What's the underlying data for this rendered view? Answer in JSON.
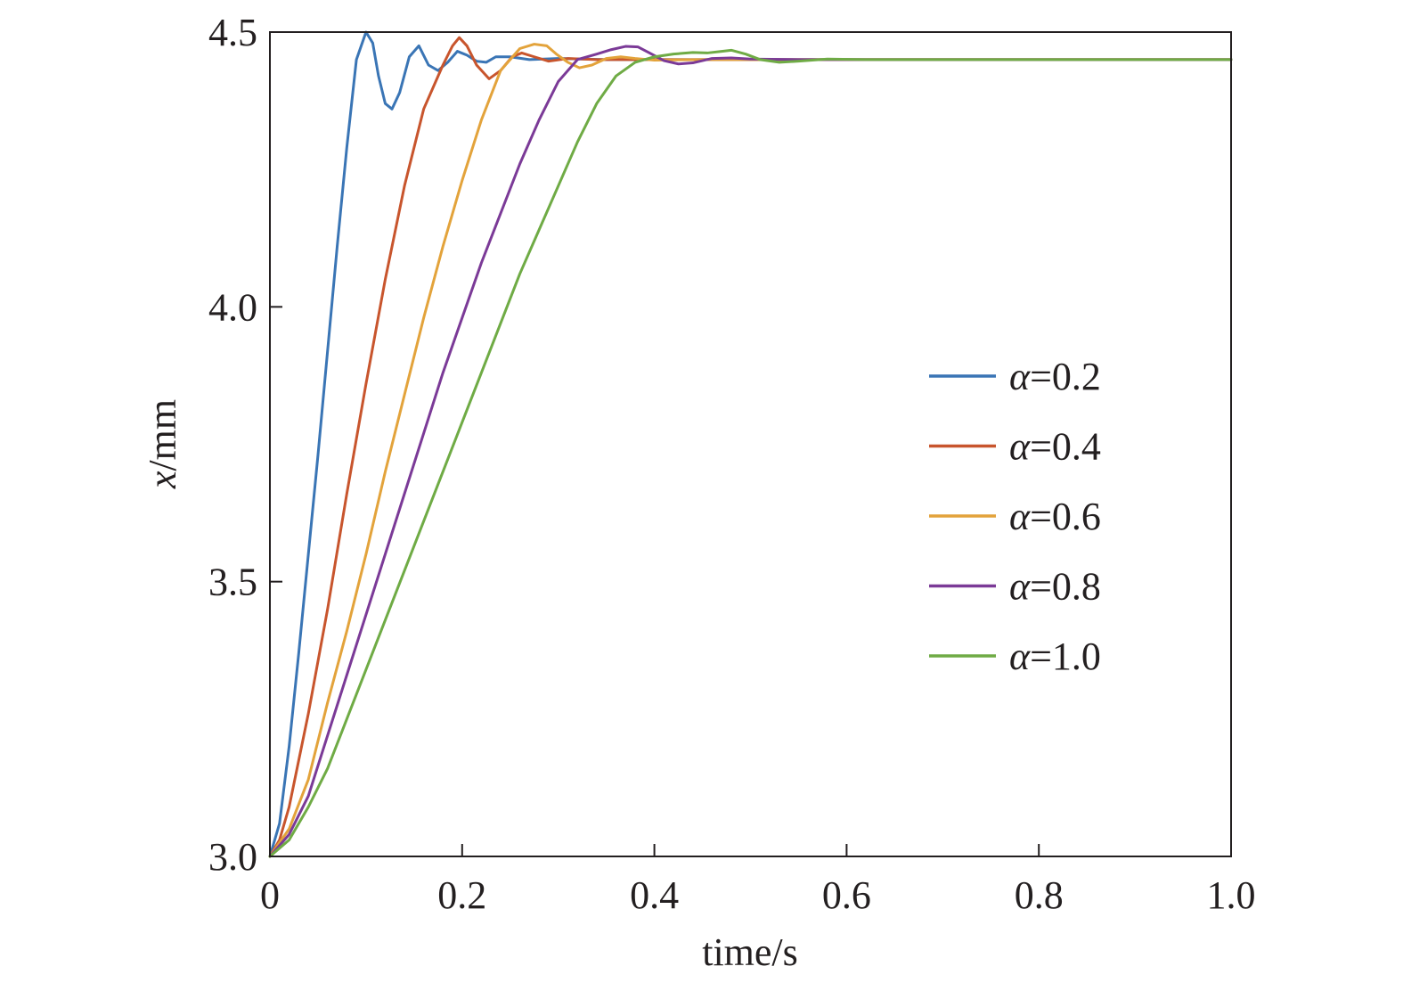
{
  "chart_data": {
    "type": "line",
    "title": "",
    "xlabel": "time/s",
    "ylabel": {
      "var": "x",
      "unit": "/mm"
    },
    "xlim": [
      0,
      1.0
    ],
    "ylim": [
      3.0,
      4.5
    ],
    "xticks": [
      0,
      0.2,
      0.4,
      0.6,
      0.8,
      1.0
    ],
    "xtick_labels": [
      "0",
      "0.2",
      "0.4",
      "0.6",
      "0.8",
      "1.0"
    ],
    "yticks": [
      3.0,
      3.5,
      4.0,
      4.5
    ],
    "ytick_labels": [
      "3.0",
      "3.5",
      "4.0",
      "4.5"
    ],
    "grid": false,
    "legend_position": "right",
    "series": [
      {
        "name": {
          "symbol": "α",
          "text": "=0.2"
        },
        "color": "#3a75b5",
        "x": [
          0.0,
          0.01,
          0.02,
          0.03,
          0.04,
          0.05,
          0.06,
          0.07,
          0.08,
          0.09,
          0.1,
          0.107,
          0.113,
          0.12,
          0.127,
          0.135,
          0.145,
          0.155,
          0.165,
          0.175,
          0.185,
          0.195,
          0.205,
          0.215,
          0.225,
          0.235,
          0.25,
          0.27,
          0.3,
          0.35,
          0.45,
          0.6,
          0.8,
          1.0
        ],
        "y": [
          3.0,
          3.06,
          3.2,
          3.37,
          3.55,
          3.73,
          3.92,
          4.11,
          4.29,
          4.45,
          4.5,
          4.48,
          4.42,
          4.37,
          4.36,
          4.39,
          4.455,
          4.475,
          4.44,
          4.43,
          4.445,
          4.465,
          4.458,
          4.447,
          4.445,
          4.455,
          4.455,
          4.45,
          4.452,
          4.45,
          4.45,
          4.45,
          4.45,
          4.45
        ]
      },
      {
        "name": {
          "symbol": "α",
          "text": "=0.4"
        },
        "color": "#c8552d",
        "x": [
          0.0,
          0.01,
          0.02,
          0.04,
          0.06,
          0.08,
          0.1,
          0.12,
          0.14,
          0.16,
          0.18,
          0.19,
          0.197,
          0.205,
          0.215,
          0.228,
          0.24,
          0.252,
          0.262,
          0.275,
          0.29,
          0.31,
          0.34,
          0.4,
          0.5,
          0.7,
          1.0
        ],
        "y": [
          3.0,
          3.03,
          3.09,
          3.26,
          3.45,
          3.66,
          3.86,
          4.05,
          4.22,
          4.36,
          4.44,
          4.475,
          4.49,
          4.475,
          4.44,
          4.415,
          4.43,
          4.455,
          4.462,
          4.455,
          4.447,
          4.452,
          4.45,
          4.45,
          4.45,
          4.45,
          4.45
        ]
      },
      {
        "name": {
          "symbol": "α",
          "text": "=0.6"
        },
        "color": "#e3a33b",
        "x": [
          0.0,
          0.02,
          0.04,
          0.06,
          0.08,
          0.1,
          0.12,
          0.14,
          0.16,
          0.18,
          0.2,
          0.22,
          0.24,
          0.26,
          0.275,
          0.288,
          0.298,
          0.31,
          0.322,
          0.335,
          0.35,
          0.365,
          0.38,
          0.4,
          0.45,
          0.6,
          0.8,
          1.0
        ],
        "y": [
          3.0,
          3.05,
          3.14,
          3.28,
          3.41,
          3.55,
          3.7,
          3.84,
          3.98,
          4.11,
          4.23,
          4.34,
          4.43,
          4.47,
          4.478,
          4.475,
          4.46,
          4.445,
          4.435,
          4.44,
          4.452,
          4.455,
          4.452,
          4.449,
          4.45,
          4.45,
          4.45,
          4.45
        ]
      },
      {
        "name": {
          "symbol": "α",
          "text": "=0.8"
        },
        "color": "#7b3a97",
        "x": [
          0.0,
          0.02,
          0.04,
          0.06,
          0.08,
          0.1,
          0.12,
          0.14,
          0.16,
          0.18,
          0.2,
          0.22,
          0.24,
          0.26,
          0.28,
          0.3,
          0.32,
          0.34,
          0.355,
          0.37,
          0.383,
          0.395,
          0.41,
          0.425,
          0.44,
          0.46,
          0.48,
          0.5,
          0.55,
          0.6,
          0.8,
          1.0
        ],
        "y": [
          3.0,
          3.04,
          3.11,
          3.22,
          3.33,
          3.44,
          3.55,
          3.66,
          3.77,
          3.88,
          3.98,
          4.08,
          4.17,
          4.26,
          4.34,
          4.41,
          4.45,
          4.46,
          4.468,
          4.474,
          4.473,
          4.462,
          4.448,
          4.442,
          4.444,
          4.452,
          4.453,
          4.451,
          4.45,
          4.45,
          4.45,
          4.45
        ]
      },
      {
        "name": {
          "symbol": "α",
          "text": "=1.0"
        },
        "color": "#6fab45",
        "x": [
          0.0,
          0.02,
          0.04,
          0.06,
          0.08,
          0.1,
          0.12,
          0.14,
          0.16,
          0.18,
          0.2,
          0.22,
          0.24,
          0.26,
          0.28,
          0.3,
          0.32,
          0.34,
          0.36,
          0.38,
          0.4,
          0.42,
          0.44,
          0.455,
          0.47,
          0.48,
          0.495,
          0.51,
          0.53,
          0.55,
          0.58,
          0.62,
          0.7,
          0.8,
          1.0
        ],
        "y": [
          3.0,
          3.03,
          3.09,
          3.16,
          3.25,
          3.34,
          3.43,
          3.52,
          3.61,
          3.7,
          3.79,
          3.88,
          3.97,
          4.06,
          4.14,
          4.22,
          4.3,
          4.37,
          4.42,
          4.445,
          4.455,
          4.46,
          4.463,
          4.462,
          4.465,
          4.467,
          4.46,
          4.45,
          4.445,
          4.447,
          4.451,
          4.45,
          4.45,
          4.45,
          4.45
        ]
      }
    ]
  }
}
